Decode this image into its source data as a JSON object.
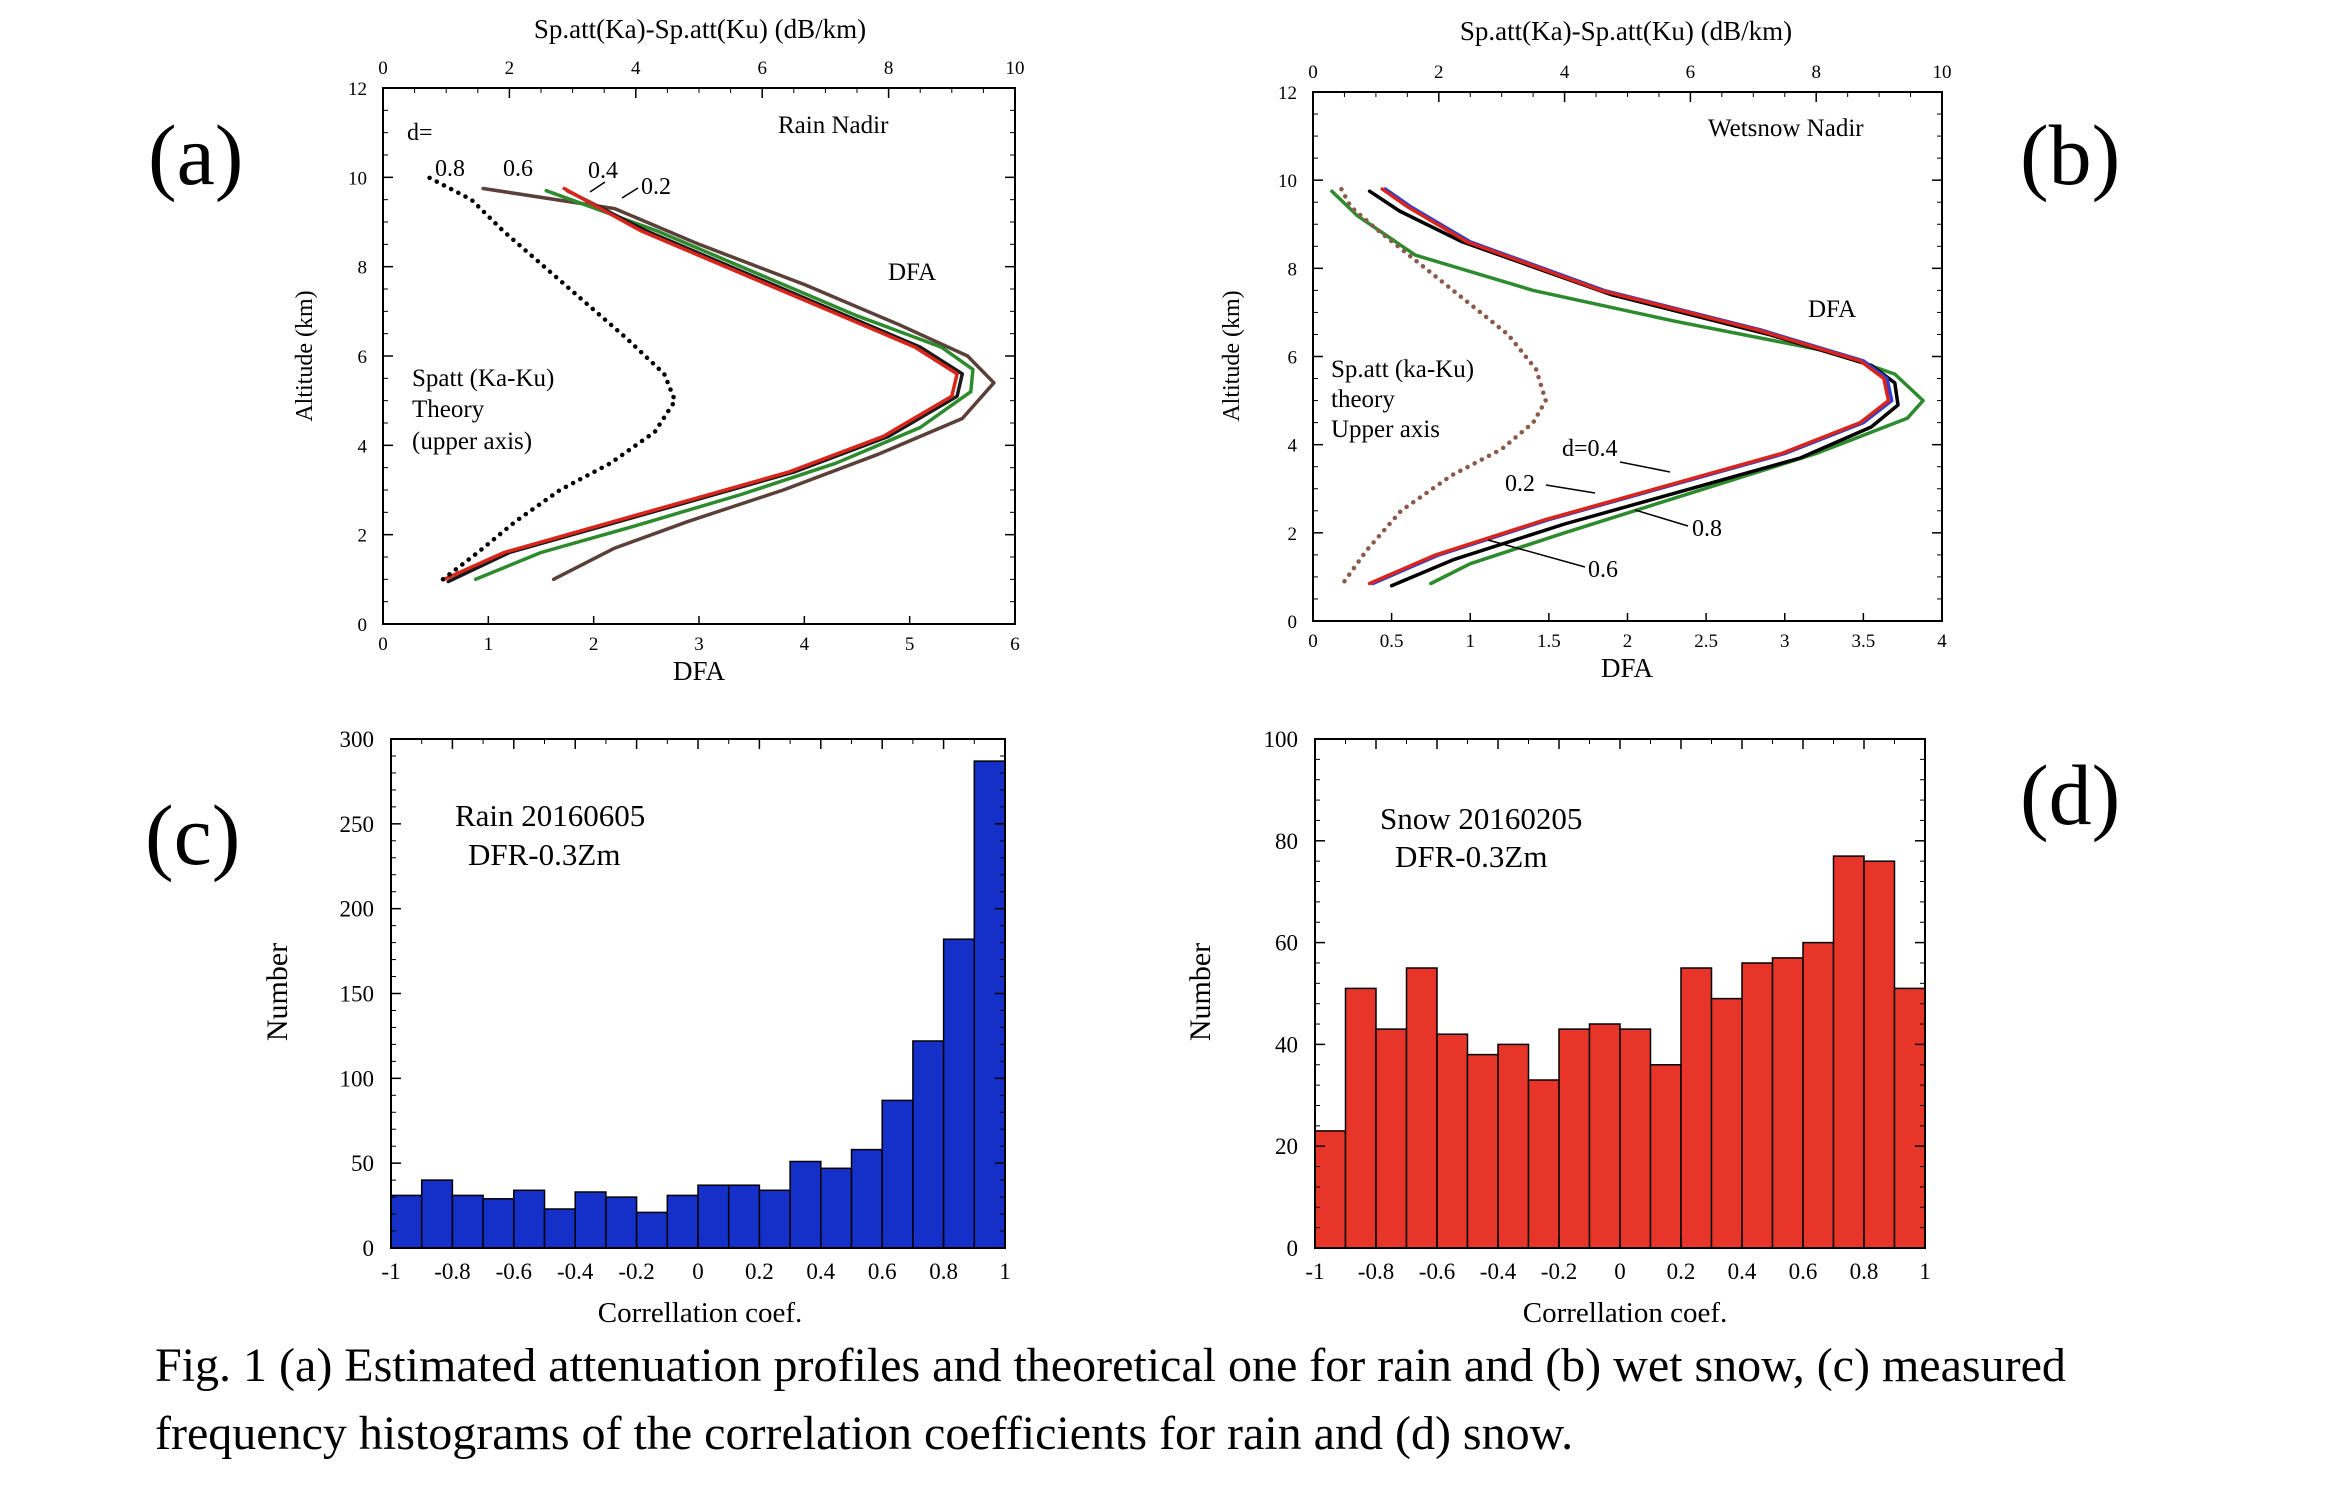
{
  "caption": {
    "line1": "Fig. 1 (a) Estimated attenuation profiles and theoretical one for rain and (b) wet snow, (c) measured",
    "line2": "frequency histograms of the correlation coefficients for rain and (d) snow."
  },
  "chart_data": [
    {
      "id": "a",
      "panel_label": "(a)",
      "type": "line",
      "title": "Rain Nadir",
      "xlabel": "DFA",
      "ylabel": "Altitude (km)",
      "x2label": "Sp.att(Ka)-Sp.att(Ku) (dB/km)",
      "xlim": [
        0,
        6
      ],
      "x2lim": [
        0,
        10
      ],
      "ylim": [
        0,
        12
      ],
      "xticks": [
        "0",
        "1",
        "2",
        "3",
        "4",
        "5",
        "6"
      ],
      "x2ticks": [
        "0",
        "2",
        "4",
        "6",
        "8",
        "10"
      ],
      "yticks": [
        "0",
        "2",
        "4",
        "6",
        "8",
        "10",
        "12"
      ],
      "annotations": {
        "d_prefix": "d=",
        "d_values": [
          "0.8",
          "0.6",
          "0.4",
          "0.2"
        ],
        "dfa_label": "DFA",
        "theory_lines": [
          "Spatt (Ka-Ku)",
          "Theory",
          "(upper axis)"
        ]
      },
      "series": [
        {
          "name": "d=0.8",
          "axis": "bottom",
          "color": "#5a4038",
          "dashed": false,
          "points": [
            [
              1.62,
              1.0
            ],
            [
              2.2,
              1.7
            ],
            [
              2.9,
              2.3
            ],
            [
              3.8,
              3.0
            ],
            [
              4.7,
              3.8
            ],
            [
              5.5,
              4.6
            ],
            [
              5.8,
              5.4
            ],
            [
              5.55,
              6.0
            ],
            [
              4.9,
              6.7
            ],
            [
              4.0,
              7.6
            ],
            [
              3.0,
              8.5
            ],
            [
              2.2,
              9.3
            ],
            [
              0.95,
              9.75
            ]
          ]
        },
        {
          "name": "d=0.6",
          "axis": "bottom",
          "color": "#2d8a2d",
          "dashed": false,
          "points": [
            [
              0.88,
              1.0
            ],
            [
              1.5,
              1.6
            ],
            [
              2.4,
              2.2
            ],
            [
              3.4,
              2.9
            ],
            [
              4.3,
              3.6
            ],
            [
              5.1,
              4.4
            ],
            [
              5.58,
              5.2
            ],
            [
              5.6,
              5.7
            ],
            [
              5.3,
              6.2
            ],
            [
              4.5,
              6.9
            ],
            [
              3.6,
              7.8
            ],
            [
              2.6,
              8.8
            ],
            [
              1.55,
              9.7
            ]
          ]
        },
        {
          "name": "d=0.4",
          "axis": "bottom",
          "color": "#1a1a1a",
          "dashed": false,
          "points": [
            [
              0.62,
              0.95
            ],
            [
              1.2,
              1.6
            ],
            [
              2.1,
              2.2
            ],
            [
              3.0,
              2.8
            ],
            [
              3.9,
              3.4
            ],
            [
              4.8,
              4.2
            ],
            [
              5.45,
              5.1
            ],
            [
              5.5,
              5.6
            ],
            [
              5.1,
              6.2
            ],
            [
              4.3,
              7.0
            ],
            [
              3.4,
              7.9
            ],
            [
              2.5,
              8.8
            ],
            [
              1.75,
              9.7
            ]
          ]
        },
        {
          "name": "d=0.2",
          "axis": "bottom",
          "color": "#d9261c",
          "dashed": false,
          "points": [
            [
              0.58,
              1.0
            ],
            [
              1.15,
              1.6
            ],
            [
              2.05,
              2.2
            ],
            [
              2.95,
              2.8
            ],
            [
              3.85,
              3.4
            ],
            [
              4.75,
              4.2
            ],
            [
              5.4,
              5.1
            ],
            [
              5.45,
              5.6
            ],
            [
              5.05,
              6.2
            ],
            [
              4.25,
              7.0
            ],
            [
              3.35,
              7.9
            ],
            [
              2.45,
              8.8
            ],
            [
              1.72,
              9.75
            ]
          ]
        },
        {
          "name": "Theory (upper axis)",
          "axis": "top",
          "color": "#000000",
          "dashed": true,
          "points": [
            [
              0.95,
              1.0
            ],
            [
              1.5,
              1.6
            ],
            [
              2.1,
              2.3
            ],
            [
              2.8,
              3.0
            ],
            [
              3.6,
              3.6
            ],
            [
              4.3,
              4.3
            ],
            [
              4.62,
              5.0
            ],
            [
              4.45,
              5.6
            ],
            [
              3.85,
              6.4
            ],
            [
              3.2,
              7.2
            ],
            [
              2.55,
              8.0
            ],
            [
              1.9,
              8.8
            ],
            [
              1.4,
              9.5
            ],
            [
              0.72,
              10.0
            ]
          ]
        }
      ]
    },
    {
      "id": "b",
      "panel_label": "(b)",
      "type": "line",
      "title": "Wetsnow Nadir",
      "xlabel": "DFA",
      "ylabel": "Altitude (km)",
      "x2label": "Sp.att(Ka)-Sp.att(Ku) (dB/km)",
      "xlim": [
        0,
        4
      ],
      "x2lim": [
        0,
        10
      ],
      "ylim": [
        0,
        12
      ],
      "xticks": [
        "0",
        "0.5",
        "1",
        "1.5",
        "2",
        "2.5",
        "3",
        "3.5",
        "4"
      ],
      "x2ticks": [
        "0",
        "2",
        "4",
        "6",
        "8",
        "10"
      ],
      "yticks": [
        "0",
        "2",
        "4",
        "6",
        "8",
        "10",
        "12"
      ],
      "annotations": {
        "d_labels": [
          "d=0.4",
          "0.2",
          "0.8",
          "0.6"
        ],
        "dfa_label": "DFA",
        "theory_lines": [
          "Sp.att (ka-Ku)",
          "theory",
          "Upper axis"
        ]
      },
      "series": [
        {
          "name": "d=0.8",
          "axis": "bottom",
          "color": "#2d8a2d",
          "dashed": false,
          "points": [
            [
              0.75,
              0.85
            ],
            [
              1.0,
              1.3
            ],
            [
              1.6,
              2.0
            ],
            [
              2.4,
              2.9
            ],
            [
              3.2,
              3.8
            ],
            [
              3.78,
              4.6
            ],
            [
              3.88,
              5.0
            ],
            [
              3.7,
              5.6
            ],
            [
              3.3,
              6.1
            ],
            [
              2.3,
              6.8
            ],
            [
              1.4,
              7.5
            ],
            [
              0.65,
              8.3
            ],
            [
              0.28,
              9.2
            ],
            [
              0.12,
              9.75
            ]
          ]
        },
        {
          "name": "d=0.6",
          "axis": "bottom",
          "color": "#000000",
          "dashed": false,
          "points": [
            [
              0.5,
              0.8
            ],
            [
              0.9,
              1.4
            ],
            [
              1.6,
              2.2
            ],
            [
              2.4,
              3.0
            ],
            [
              3.1,
              3.7
            ],
            [
              3.55,
              4.4
            ],
            [
              3.72,
              4.9
            ],
            [
              3.7,
              5.4
            ],
            [
              3.55,
              5.8
            ],
            [
              2.9,
              6.5
            ],
            [
              1.9,
              7.4
            ],
            [
              0.95,
              8.6
            ],
            [
              0.55,
              9.3
            ],
            [
              0.36,
              9.75
            ]
          ]
        },
        {
          "name": "d=0.4",
          "axis": "bottom",
          "color": "#2b3fd1",
          "dashed": false,
          "points": [
            [
              0.38,
              0.85
            ],
            [
              0.8,
              1.5
            ],
            [
              1.5,
              2.3
            ],
            [
              2.3,
              3.1
            ],
            [
              3.0,
              3.8
            ],
            [
              3.5,
              4.5
            ],
            [
              3.68,
              5.0
            ],
            [
              3.65,
              5.5
            ],
            [
              3.5,
              5.9
            ],
            [
              2.85,
              6.6
            ],
            [
              1.85,
              7.5
            ],
            [
              1.0,
              8.6
            ],
            [
              0.62,
              9.4
            ],
            [
              0.46,
              9.8
            ]
          ]
        },
        {
          "name": "d=0.2",
          "axis": "bottom",
          "color": "#d9261c",
          "dashed": false,
          "points": [
            [
              0.36,
              0.85
            ],
            [
              0.78,
              1.5
            ],
            [
              1.48,
              2.3
            ],
            [
              2.28,
              3.1
            ],
            [
              2.98,
              3.8
            ],
            [
              3.48,
              4.5
            ],
            [
              3.66,
              5.0
            ],
            [
              3.63,
              5.5
            ],
            [
              3.48,
              5.9
            ],
            [
              2.83,
              6.6
            ],
            [
              1.83,
              7.5
            ],
            [
              0.98,
              8.6
            ],
            [
              0.6,
              9.4
            ],
            [
              0.44,
              9.8
            ]
          ]
        },
        {
          "name": "Theory (upper axis)",
          "axis": "top",
          "color": "#8b5a4b",
          "dashed": true,
          "points": [
            [
              0.5,
              0.9
            ],
            [
              0.85,
              1.6
            ],
            [
              1.4,
              2.5
            ],
            [
              2.2,
              3.3
            ],
            [
              3.0,
              3.9
            ],
            [
              3.5,
              4.5
            ],
            [
              3.7,
              5.0
            ],
            [
              3.55,
              5.7
            ],
            [
              3.1,
              6.5
            ],
            [
              2.4,
              7.3
            ],
            [
              1.7,
              8.1
            ],
            [
              1.0,
              8.9
            ],
            [
              0.6,
              9.4
            ],
            [
              0.45,
              9.8
            ]
          ]
        }
      ]
    },
    {
      "id": "c",
      "panel_label": "(c)",
      "type": "bar",
      "title": "Rain 20160605",
      "subtitle": "DFR-0.3Zm",
      "xlabel": "Correllation coef.",
      "ylabel": "Number",
      "xlim": [
        -1,
        1
      ],
      "ylim": [
        0,
        300
      ],
      "xticks": [
        "-1",
        "-0.8",
        "-0.6",
        "-0.4",
        "-0.2",
        "0",
        "0.2",
        "0.4",
        "0.6",
        "0.8",
        "1"
      ],
      "yticks": [
        "0",
        "50",
        "100",
        "150",
        "200",
        "250",
        "300"
      ],
      "color": "#1530c8",
      "values": [
        31,
        40,
        31,
        29,
        34,
        23,
        33,
        30,
        21,
        31,
        37,
        37,
        34,
        51,
        47,
        58,
        87,
        122,
        182,
        287
      ]
    },
    {
      "id": "d",
      "panel_label": "(d)",
      "type": "bar",
      "title": "Snow 20160205",
      "subtitle": "DFR-0.3Zm",
      "xlabel": "Correllation coef.",
      "ylabel": "Number",
      "xlim": [
        -1,
        1
      ],
      "ylim": [
        0,
        100
      ],
      "xticks": [
        "-1",
        "-0.8",
        "-0.6",
        "-0.4",
        "-0.2",
        "0",
        "0.2",
        "0.4",
        "0.6",
        "0.8",
        "1"
      ],
      "yticks": [
        "0",
        "20",
        "40",
        "60",
        "80",
        "100"
      ],
      "color": "#e8352a",
      "values": [
        23,
        51,
        43,
        55,
        42,
        38,
        40,
        33,
        43,
        44,
        43,
        36,
        55,
        49,
        56,
        57,
        60,
        77,
        76,
        51
      ]
    }
  ]
}
